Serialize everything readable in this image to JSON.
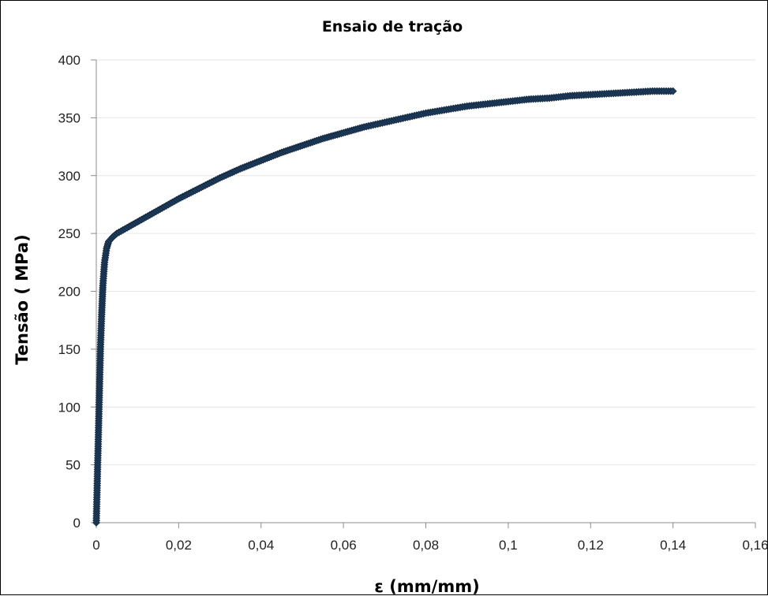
{
  "chart_data": {
    "type": "scatter",
    "title": "Ensaio de tração",
    "xlabel": "ε (mm/mm)",
    "ylabel": "Tensão ( MPa)",
    "xlim": [
      0,
      0.16
    ],
    "ylim": [
      0,
      400
    ],
    "x_ticks": [
      "0",
      "0,02",
      "0,04",
      "0,06",
      "0,08",
      "0,1",
      "0,12",
      "0,14",
      "0,16"
    ],
    "y_ticks": [
      "0",
      "50",
      "100",
      "150",
      "200",
      "250",
      "300",
      "350",
      "400"
    ],
    "grid": "horizontal",
    "legend": "none",
    "series": [
      {
        "marker": "diamond",
        "color": "#1f3b5c",
        "points": [
          [
            0,
            0
          ],
          [
            0.0002,
            30
          ],
          [
            0.0004,
            60
          ],
          [
            0.0006,
            90
          ],
          [
            0.0008,
            120
          ],
          [
            0.001,
            150
          ],
          [
            0.0013,
            180
          ],
          [
            0.0016,
            205
          ],
          [
            0.002,
            225
          ],
          [
            0.0025,
            237
          ],
          [
            0.003,
            243
          ],
          [
            0.004,
            247
          ],
          [
            0.005,
            250
          ],
          [
            0.006,
            252
          ],
          [
            0.008,
            256
          ],
          [
            0.01,
            260
          ],
          [
            0.015,
            270
          ],
          [
            0.02,
            280
          ],
          [
            0.025,
            289
          ],
          [
            0.03,
            298
          ],
          [
            0.035,
            306
          ],
          [
            0.04,
            313
          ],
          [
            0.045,
            320
          ],
          [
            0.05,
            326
          ],
          [
            0.055,
            332
          ],
          [
            0.06,
            337
          ],
          [
            0.065,
            342
          ],
          [
            0.07,
            346
          ],
          [
            0.075,
            350
          ],
          [
            0.08,
            354
          ],
          [
            0.085,
            357
          ],
          [
            0.09,
            360
          ],
          [
            0.095,
            362
          ],
          [
            0.1,
            364
          ],
          [
            0.105,
            366
          ],
          [
            0.11,
            367
          ],
          [
            0.115,
            369
          ],
          [
            0.12,
            370
          ],
          [
            0.125,
            371
          ],
          [
            0.13,
            372
          ],
          [
            0.135,
            373
          ],
          [
            0.14,
            373
          ]
        ]
      }
    ]
  }
}
